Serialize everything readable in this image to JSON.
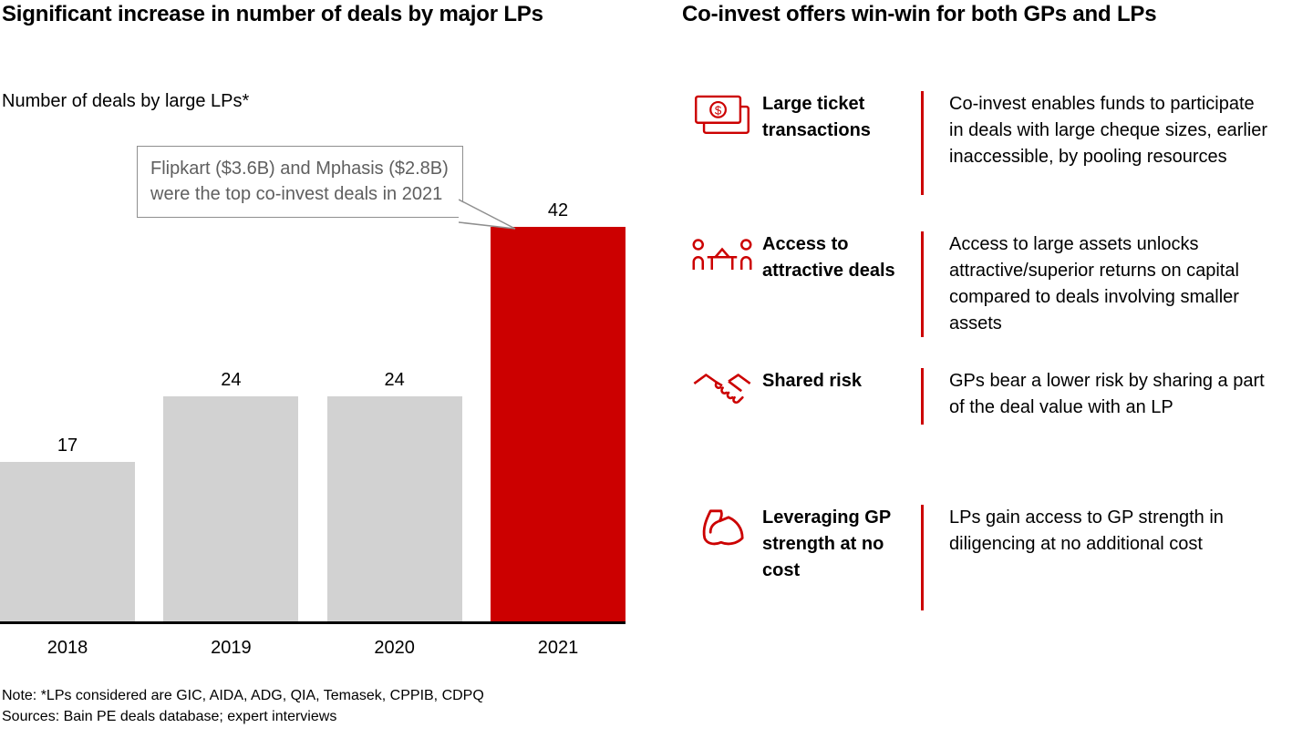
{
  "left": {
    "title": "Significant increase in number of deals by major LPs",
    "subtitle": "Number of deals by large LPs*",
    "callout": "Flipkart ($3.6B) and Mphasis ($2.8B) were the top co-invest deals in 2021",
    "note": "Note: *LPs considered are GIC, AIDA, ADG, QIA, Temasek, CPPIB, CDPQ",
    "sources": "Sources: Bain PE deals database; expert interviews"
  },
  "right": {
    "title": "Co-invest offers win-win for both GPs and LPs",
    "items": [
      {
        "icon": "banknote-icon",
        "label": "Large ticket transactions",
        "desc": "Co-invest enables funds to participate in deals with large cheque sizes, earlier inaccessible, by pooling resources"
      },
      {
        "icon": "meeting-icon",
        "label": "Access to attractive deals",
        "desc": "Access to large assets unlocks attractive/superior returns on capital compared to deals involving smaller assets"
      },
      {
        "icon": "handshake-icon",
        "label": "Shared risk",
        "desc": "GPs bear a lower risk by sharing a part of the deal value with an LP"
      },
      {
        "icon": "bicep-icon",
        "label": "Leveraging GP strength at no cost",
        "desc": "LPs gain access to GP strength in diligencing at no additional cost"
      }
    ]
  },
  "chart_data": {
    "type": "bar",
    "categories": [
      "2018",
      "2019",
      "2020",
      "2021"
    ],
    "values": [
      17,
      24,
      24,
      42
    ],
    "title": "Number of deals by large LPs*",
    "xlabel": "",
    "ylabel": "Number of deals",
    "ylim": [
      0,
      45
    ],
    "grid": false,
    "legend": "none",
    "bar_colors": [
      "#d2d2d2",
      "#d2d2d2",
      "#d2d2d2",
      "#cc0000"
    ],
    "annotation": "Flipkart ($3.6B) and Mphasis ($2.8B) were the top co-invest deals in 2021"
  },
  "colors": {
    "accent_red": "#cc0000",
    "bar_gray": "#d2d2d2",
    "axis_black": "#000000",
    "callout_border": "#8f8f8f",
    "callout_text": "#5f5f5f"
  }
}
